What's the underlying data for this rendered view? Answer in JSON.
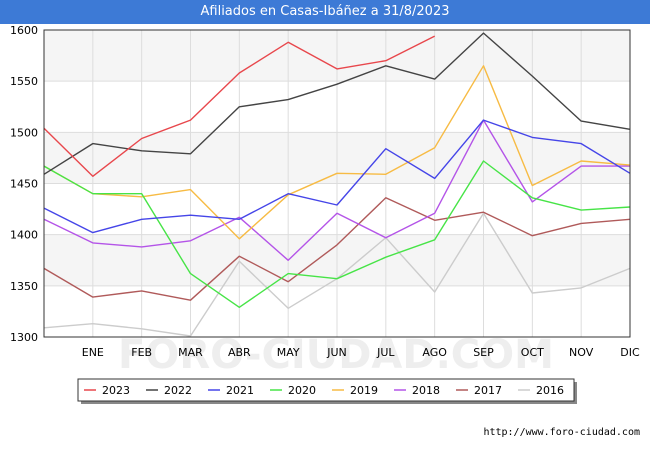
{
  "chart_data": {
    "type": "line",
    "title": "Afiliados en Casas-Ibáñez a 31/8/2023",
    "categories": [
      "",
      "ENE",
      "FEB",
      "MAR",
      "ABR",
      "MAY",
      "JUN",
      "JUL",
      "AGO",
      "SEP",
      "OCT",
      "NOV",
      "DIC"
    ],
    "ylim": [
      1300,
      1600
    ],
    "yticks": [
      1300,
      1350,
      1400,
      1450,
      1500,
      1550,
      1600
    ],
    "grid": true,
    "legend_position": "bottom",
    "series": [
      {
        "name": "2023",
        "color": "#e8474c",
        "values": [
          1504,
          1457,
          1494,
          1512,
          1558,
          1588,
          1562,
          1570,
          1594,
          null,
          null,
          null,
          null
        ]
      },
      {
        "name": "2022",
        "color": "#444444",
        "values": [
          1459,
          1489,
          1482,
          1479,
          1525,
          1532,
          1547,
          1565,
          1552,
          1597,
          1555,
          1511,
          1503
        ]
      },
      {
        "name": "2021",
        "color": "#4545e8",
        "values": [
          1426,
          1402,
          1415,
          1419,
          1415,
          1440,
          1429,
          1484,
          1455,
          1512,
          1495,
          1489,
          1460
        ]
      },
      {
        "name": "2020",
        "color": "#47e447",
        "values": [
          1467,
          1440,
          1440,
          1362,
          1329,
          1362,
          1357,
          1378,
          1395,
          1472,
          1436,
          1424,
          1427
        ]
      },
      {
        "name": "2019",
        "color": "#f7bb44",
        "values": [
          1467,
          1440,
          1437,
          1444,
          1396,
          1439,
          1460,
          1459,
          1485,
          1565,
          1448,
          1472,
          1468
        ]
      },
      {
        "name": "2018",
        "color": "#b454e8",
        "values": [
          1415,
          1392,
          1388,
          1394,
          1417,
          1375,
          1421,
          1397,
          1421,
          1512,
          1432,
          1467,
          1467
        ]
      },
      {
        "name": "2017",
        "color": "#b05a5a",
        "values": [
          1367,
          1339,
          1345,
          1336,
          1379,
          1354,
          1390,
          1436,
          1414,
          1422,
          1399,
          1411,
          1415
        ]
      },
      {
        "name": "2016",
        "color": "#cccccc",
        "values": [
          1309,
          1313,
          1308,
          1301,
          1374,
          1328,
          1357,
          1397,
          1344,
          1421,
          1343,
          1348,
          1367
        ]
      }
    ]
  },
  "credit": "http://www.foro-ciudad.com",
  "watermark": "FORO-CIUDAD.COM"
}
